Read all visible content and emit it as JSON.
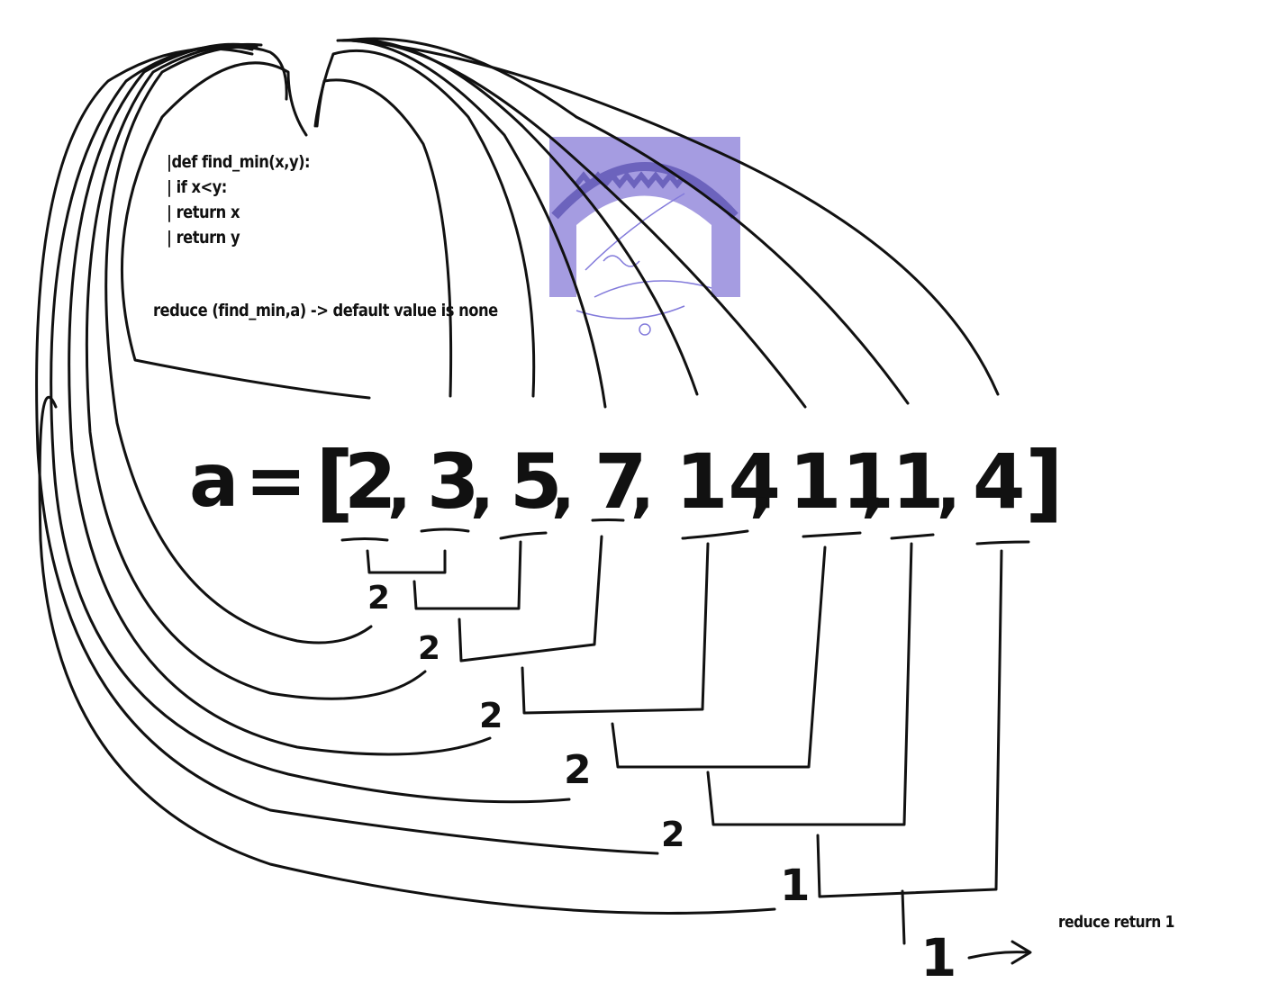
{
  "code_lines": [
    "|def find_min(x,y):",
    "| if x<y:",
    "| return x",
    "| return y"
  ],
  "note_default": "reduce (find_min,a) -> default value is none",
  "array_var": "a",
  "equals_sign": "=",
  "open_bracket": "[",
  "close_bracket": "]",
  "comma": ",",
  "array": [
    "2",
    "3",
    "5",
    "7",
    "14",
    "11",
    "1",
    "4"
  ],
  "step_results": [
    "2",
    "2",
    "2",
    "2",
    "2",
    "1"
  ],
  "final_result": "1",
  "note_return": "reduce return 1",
  "logo_color": "#6a5acd"
}
